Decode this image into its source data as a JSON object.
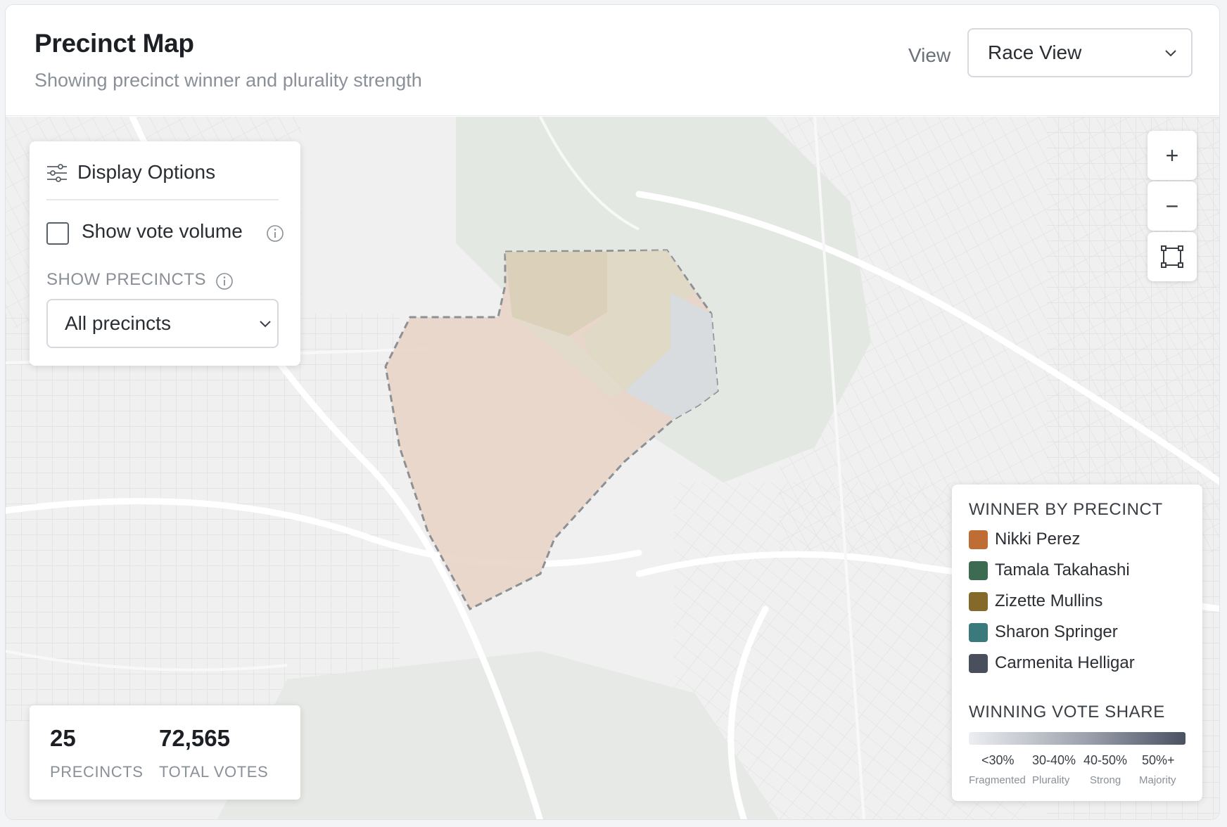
{
  "header": {
    "title": "Precinct Map",
    "subtitle": "Showing precinct winner and plurality strength",
    "view_label": "View",
    "view_select_value": "Race View"
  },
  "display_options": {
    "title": "Display Options",
    "show_vote_volume_label": "Show vote volume",
    "show_vote_volume_checked": false,
    "show_precincts_label": "SHOW PRECINCTS",
    "precincts_select_value": "All precincts"
  },
  "map_controls": {
    "zoom_in": "+",
    "zoom_out": "−"
  },
  "legend": {
    "winner_title": "WINNER BY PRECINCT",
    "candidates": [
      {
        "name": "Nikki Perez",
        "color": "#c06d35"
      },
      {
        "name": "Tamala Takahashi",
        "color": "#3c6b52"
      },
      {
        "name": "Zizette Mullins",
        "color": "#85692a"
      },
      {
        "name": "Sharon Springer",
        "color": "#3b7a7c"
      },
      {
        "name": "Carmenita Helligar",
        "color": "#4a4f5e"
      }
    ],
    "share_title": "WINNING VOTE SHARE",
    "share_scale": [
      {
        "label": "<30%",
        "sub": "Fragmented"
      },
      {
        "label": "30-40%",
        "sub": "Plurality"
      },
      {
        "label": "40-50%",
        "sub": "Strong"
      },
      {
        "label": "50%+",
        "sub": "Majority"
      }
    ]
  },
  "stats": {
    "precincts_value": "25",
    "precincts_label": "PRECINCTS",
    "votes_value": "72,565",
    "votes_label": "TOTAL VOTES"
  },
  "colors": {
    "accent_orange": "#c06d35",
    "map_bg": "#eeefee"
  }
}
